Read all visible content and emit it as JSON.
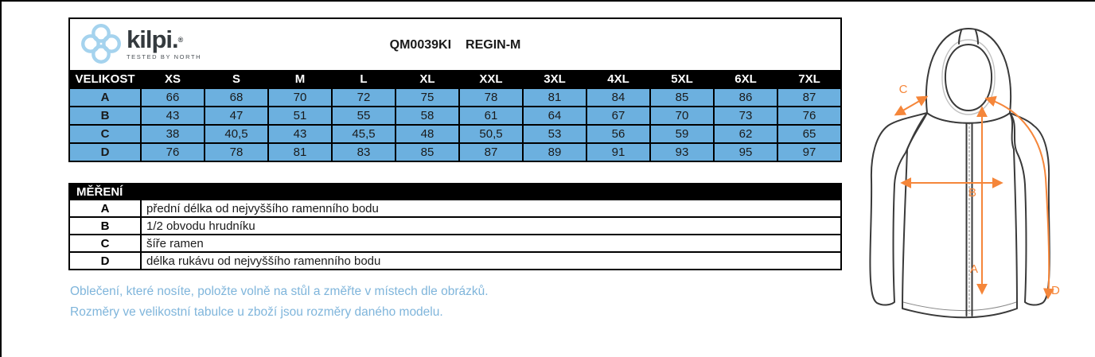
{
  "brand": {
    "name": "kilpi.",
    "reg": "®",
    "tagline": "TESTED BY NORTH",
    "knot_icon": "kilpi-knot-icon"
  },
  "title": {
    "code": "QM0039KI",
    "name": "REGIN-M"
  },
  "size_table": {
    "header_label": "VELIKOST",
    "sizes": [
      "XS",
      "S",
      "M",
      "L",
      "XL",
      "XXL",
      "3XL",
      "4XL",
      "5XL",
      "6XL",
      "7XL"
    ],
    "rows": [
      {
        "label": "A",
        "values": [
          "66",
          "68",
          "70",
          "72",
          "75",
          "78",
          "81",
          "84",
          "85",
          "86",
          "87"
        ]
      },
      {
        "label": "B",
        "values": [
          "43",
          "47",
          "51",
          "55",
          "58",
          "61",
          "64",
          "67",
          "70",
          "73",
          "76"
        ]
      },
      {
        "label": "C",
        "values": [
          "38",
          "40,5",
          "43",
          "45,5",
          "48",
          "50,5",
          "53",
          "56",
          "59",
          "62",
          "65"
        ]
      },
      {
        "label": "D",
        "values": [
          "76",
          "78",
          "81",
          "83",
          "85",
          "87",
          "89",
          "91",
          "93",
          "95",
          "97"
        ]
      }
    ]
  },
  "measure_table": {
    "title": "MĚŘENÍ",
    "rows": [
      {
        "label": "A",
        "description": "přední délka od nejvyššího ramenního bodu"
      },
      {
        "label": "B",
        "description": "1/2 obvodu hrudníku"
      },
      {
        "label": "C",
        "description": "šíře ramen"
      },
      {
        "label": "D",
        "description": "délka rukávu od nejvyššího ramenního bodu"
      }
    ]
  },
  "notes": {
    "line1": "Oblečení, které nosíte, položte volně na stůl a změřte v místech dle obrázků.",
    "line2": "Rozměry ve velikostní tabulce u zboží jsou rozměry daného modelu."
  },
  "diagram": {
    "labels": {
      "a": "A",
      "b": "B",
      "c": "C",
      "d": "D"
    }
  },
  "colors": {
    "cell_blue": "#6CB0DF",
    "note_blue": "#7FB5DB",
    "arrow_orange": "#F5863A",
    "logo_blue": "#A5D3EE",
    "header_black": "#000000"
  }
}
